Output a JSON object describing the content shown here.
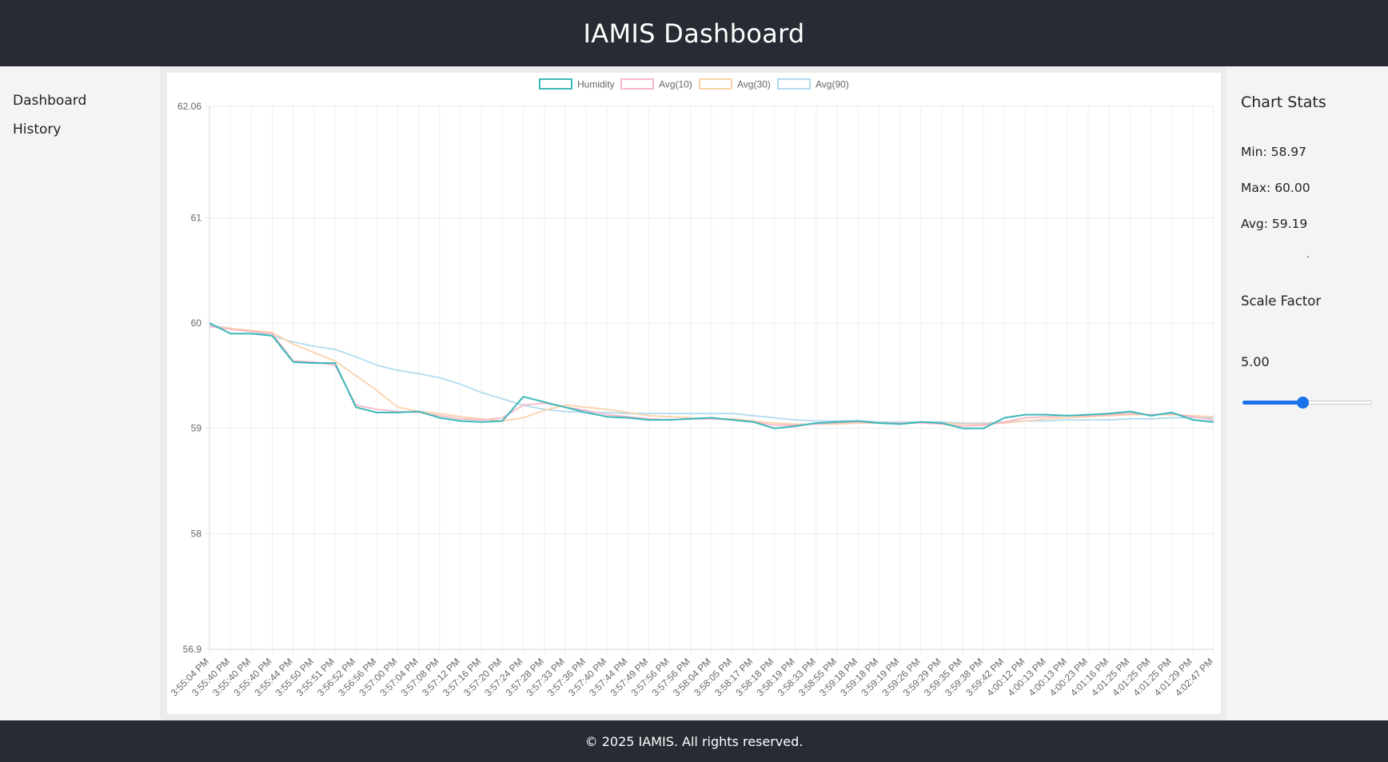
{
  "header": {
    "title": "IAMIS Dashboard"
  },
  "nav": {
    "items": [
      {
        "label": "Dashboard"
      },
      {
        "label": "History"
      }
    ]
  },
  "stats": {
    "title": "Chart Stats",
    "min": "Min: 58.97",
    "max": "Max: 60.00",
    "avg": "Avg: 59.19",
    "scale_title": "Scale Factor",
    "scale_value": "5.00",
    "scale_fraction": 0.46
  },
  "footer": {
    "text": "© 2025 IAMIS. All rights reserved."
  },
  "colors": {
    "header_bg": "#272b33",
    "humidity": "#3bb8b8",
    "avg10": "#f7b8c8",
    "avg30": "#fcd2a8",
    "avg90": "#b2daf0",
    "slider": "#1a73e8"
  },
  "chart_data": {
    "type": "line",
    "title": "",
    "legend_position": "top",
    "grid": true,
    "ylim": [
      56.9,
      62.06
    ],
    "y_ticks": [
      "62.06",
      "61",
      "60",
      "59",
      "58",
      "56.9"
    ],
    "y_tick_values": [
      62.06,
      61,
      60,
      59,
      58,
      56.9
    ],
    "categories": [
      "3:55:04 PM",
      "3:55:40 PM",
      "3:55:40 PM",
      "3:55:40 PM",
      "3:55:44 PM",
      "3:55:50 PM",
      "3:55:51 PM",
      "3:56:52 PM",
      "3:56:56 PM",
      "3:57:00 PM",
      "3:57:04 PM",
      "3:57:08 PM",
      "3:57:12 PM",
      "3:57:16 PM",
      "3:57:20 PM",
      "3:57:24 PM",
      "3:57:28 PM",
      "3:57:33 PM",
      "3:57:36 PM",
      "3:57:40 PM",
      "3:57:44 PM",
      "3:57:49 PM",
      "3:57:56 PM",
      "3:57:56 PM",
      "3:58:04 PM",
      "3:58:05 PM",
      "3:58:17 PM",
      "3:58:18 PM",
      "3:58:19 PM",
      "3:58:33 PM",
      "3:58:55 PM",
      "3:59:18 PM",
      "3:59:18 PM",
      "3:59:19 PM",
      "3:59:26 PM",
      "3:59:29 PM",
      "3:59:35 PM",
      "3:59:38 PM",
      "3:59:42 PM",
      "4:00:12 PM",
      "4:00:13 PM",
      "4:00:13 PM",
      "4:00:23 PM",
      "4:01:16 PM",
      "4:01:25 PM",
      "4:01:25 PM",
      "4:01:25 PM",
      "4:01:29 PM",
      "4:02:47 PM"
    ],
    "series": [
      {
        "name": "Humidity",
        "color": "#3bb8b8",
        "values": [
          60.0,
          59.9,
          59.9,
          59.88,
          59.63,
          59.62,
          59.62,
          59.2,
          59.15,
          59.15,
          59.16,
          59.1,
          59.07,
          59.06,
          59.07,
          59.3,
          59.25,
          59.2,
          59.15,
          59.11,
          59.1,
          59.08,
          59.08,
          59.09,
          59.1,
          59.08,
          59.06,
          59.0,
          59.02,
          59.05,
          59.06,
          59.07,
          59.05,
          59.04,
          59.06,
          59.05,
          59.0,
          59.0,
          59.1,
          59.13,
          59.13,
          59.12,
          59.13,
          59.14,
          59.16,
          59.12,
          59.15,
          59.08,
          59.06
        ]
      },
      {
        "name": "Avg(10)",
        "color": "#f7b8c8",
        "values": [
          59.97,
          59.94,
          59.92,
          59.9,
          59.64,
          59.63,
          59.6,
          59.22,
          59.18,
          59.16,
          59.15,
          59.12,
          59.09,
          59.08,
          59.1,
          59.22,
          59.24,
          59.2,
          59.17,
          59.13,
          59.11,
          59.09,
          59.08,
          59.09,
          59.09,
          59.08,
          59.06,
          59.03,
          59.03,
          59.04,
          59.05,
          59.06,
          59.05,
          59.05,
          59.05,
          59.04,
          59.02,
          59.03,
          59.06,
          59.1,
          59.11,
          59.12,
          59.12,
          59.13,
          59.14,
          59.13,
          59.14,
          59.11,
          59.08
        ]
      },
      {
        "name": "Avg(30)",
        "color": "#fcd2a8",
        "values": [
          59.97,
          59.95,
          59.93,
          59.91,
          59.8,
          59.72,
          59.64,
          59.5,
          59.36,
          59.2,
          59.16,
          59.14,
          59.11,
          59.09,
          59.07,
          59.1,
          59.17,
          59.22,
          59.2,
          59.18,
          59.15,
          59.12,
          59.11,
          59.1,
          59.09,
          59.09,
          59.07,
          59.05,
          59.04,
          59.04,
          59.04,
          59.05,
          59.05,
          59.05,
          59.05,
          59.05,
          59.04,
          59.04,
          59.05,
          59.07,
          59.09,
          59.1,
          59.11,
          59.12,
          59.13,
          59.13,
          59.13,
          59.12,
          59.11
        ]
      },
      {
        "name": "Avg(90)",
        "color": "#b2daf0",
        "values": [
          59.98,
          59.95,
          59.92,
          59.88,
          59.82,
          59.78,
          59.75,
          59.68,
          59.6,
          59.55,
          59.52,
          59.48,
          59.42,
          59.34,
          59.28,
          59.22,
          59.18,
          59.16,
          59.15,
          59.15,
          59.14,
          59.14,
          59.14,
          59.14,
          59.14,
          59.14,
          59.12,
          59.1,
          59.08,
          59.07,
          59.07,
          59.07,
          59.06,
          59.06,
          59.06,
          59.06,
          59.05,
          59.05,
          59.06,
          59.07,
          59.07,
          59.08,
          59.08,
          59.08,
          59.09,
          59.09,
          59.1,
          59.1,
          59.1
        ]
      }
    ]
  }
}
